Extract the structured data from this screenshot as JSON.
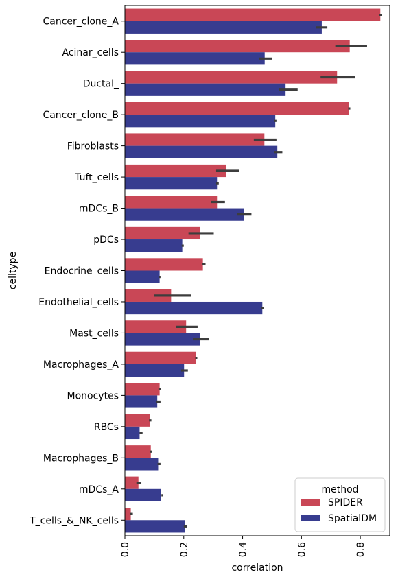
{
  "chart_data": {
    "type": "bar",
    "orientation": "horizontal",
    "xlabel": "correlation",
    "ylabel": "celltype",
    "xlim": [
      0,
      0.9
    ],
    "xticks": [
      0.0,
      0.2,
      0.4,
      0.6,
      0.8
    ],
    "xtick_labels": [
      "0.0",
      "0.2",
      "0.4",
      "0.6",
      "0.8"
    ],
    "grid": false,
    "legend": {
      "title": "method",
      "placement": "lower-right"
    },
    "categories": [
      "Cancer_clone_A",
      "Acinar_cells",
      "Ductal_",
      "Cancer_clone_B",
      "Fibroblasts",
      "Tuft_cells",
      "mDCs_B",
      "pDCs",
      "Endocrine_cells",
      "Endothelial_cells",
      "Mast_cells",
      "Macrophages_A",
      "Monocytes",
      "RBCs",
      "Macrophages_B",
      "mDCs_A",
      "T_cells_&_NK_cells"
    ],
    "series": [
      {
        "name": "SPIDER",
        "color": "#c94756",
        "values": [
          0.868,
          0.764,
          0.721,
          0.762,
          0.474,
          0.344,
          0.313,
          0.256,
          0.265,
          0.157,
          0.208,
          0.242,
          0.118,
          0.085,
          0.088,
          0.046,
          0.02
        ],
        "ci": [
          [
            0.864,
            0.873
          ],
          [
            0.715,
            0.823
          ],
          [
            0.665,
            0.783
          ],
          [
            0.759,
            0.766
          ],
          [
            0.438,
            0.515
          ],
          [
            0.31,
            0.388
          ],
          [
            0.292,
            0.34
          ],
          [
            0.216,
            0.302
          ],
          [
            0.262,
            0.274
          ],
          [
            0.1,
            0.224
          ],
          [
            0.174,
            0.247
          ],
          [
            0.239,
            0.246
          ],
          [
            0.114,
            0.122
          ],
          [
            0.082,
            0.09
          ],
          [
            0.084,
            0.091
          ],
          [
            0.039,
            0.056
          ],
          [
            0.018,
            0.027
          ]
        ]
      },
      {
        "name": "SpatialDM",
        "color": "#373c8f",
        "values": [
          0.669,
          0.475,
          0.546,
          0.511,
          0.518,
          0.313,
          0.404,
          0.195,
          0.118,
          0.467,
          0.255,
          0.201,
          0.11,
          0.05,
          0.113,
          0.123,
          0.203
        ],
        "ci": [
          [
            0.65,
            0.688
          ],
          [
            0.455,
            0.5
          ],
          [
            0.523,
            0.587
          ],
          [
            0.508,
            0.515
          ],
          [
            0.508,
            0.535
          ],
          [
            0.31,
            0.319
          ],
          [
            0.381,
            0.43
          ],
          [
            0.193,
            0.2
          ],
          [
            0.116,
            0.121
          ],
          [
            0.464,
            0.473
          ],
          [
            0.231,
            0.286
          ],
          [
            0.191,
            0.214
          ],
          [
            0.107,
            0.121
          ],
          [
            0.05,
            0.06
          ],
          [
            0.111,
            0.121
          ],
          [
            0.124,
            0.13
          ],
          [
            0.2,
            0.212
          ]
        ]
      }
    ]
  }
}
